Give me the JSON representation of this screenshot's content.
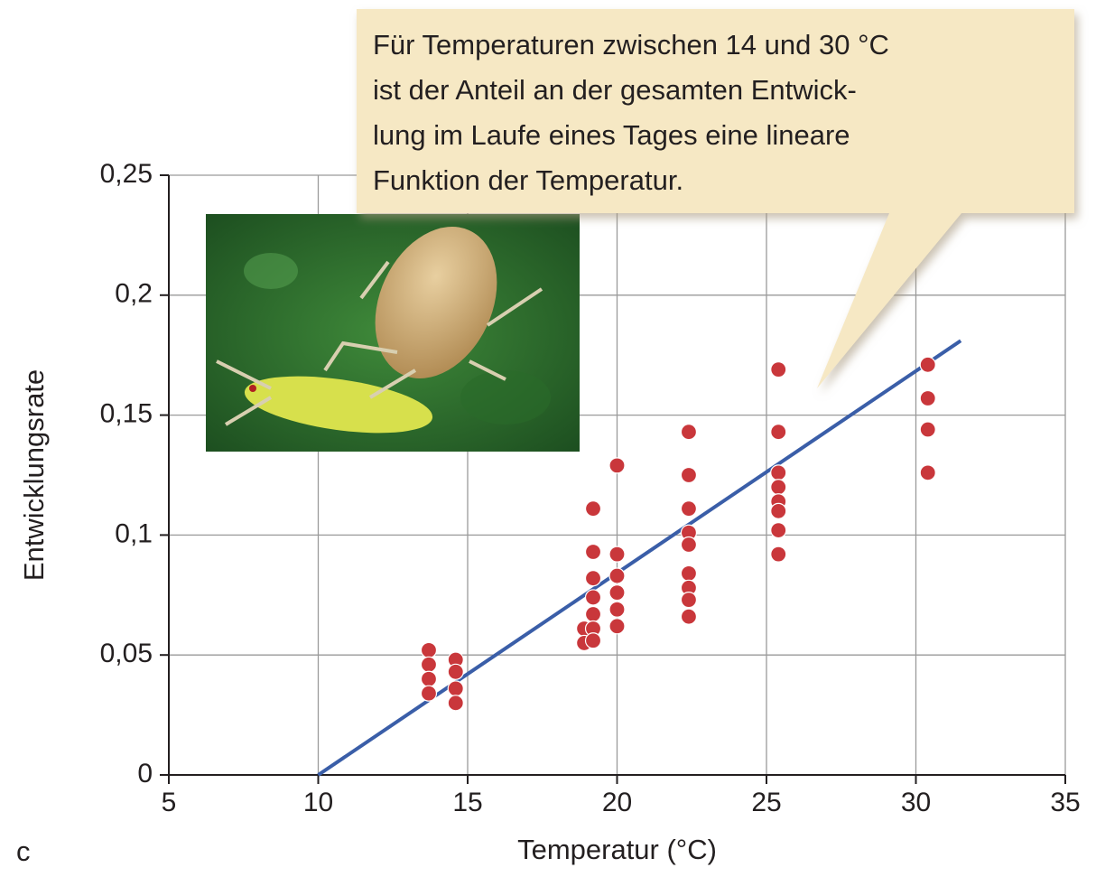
{
  "chart_data": {
    "type": "scatter",
    "panel_label": "c",
    "xlabel": "Temperatur (°C)",
    "ylabel": "Entwicklungsrate",
    "annotation": [
      "Für Temperaturen zwischen 14 und 30 °C",
      "ist der Anteil an der gesamten Entwick-",
      "lung im Laufe eines Tages eine lineare",
      "Funktion der Temperatur."
    ],
    "xlim": [
      5,
      35
    ],
    "xticks": [
      5,
      10,
      15,
      20,
      25,
      30,
      35
    ],
    "ylim": [
      0,
      0.25
    ],
    "yticks": [
      0,
      {
        "value": 0.05,
        "label": "0,05"
      },
      {
        "value": 0.1,
        "label": "0,1"
      },
      {
        "value": 0.15,
        "label": "0,15"
      },
      {
        "value": 0.2,
        "label": "0,2"
      },
      {
        "value": 0.25,
        "label": "0,25"
      }
    ],
    "grid": true,
    "series": [
      {
        "color": "#c9373b",
        "x": [
          13.7,
          13.7,
          13.7,
          13.7,
          14.6,
          14.6,
          14.6,
          14.6,
          18.9,
          18.9,
          19.2,
          19.2,
          19.2,
          19.2,
          19.2,
          19.2,
          19.2,
          20,
          20,
          20,
          20,
          20,
          20,
          22.4,
          22.4,
          22.4,
          22.4,
          22.4,
          22.4,
          22.4,
          22.4,
          22.4,
          25.4,
          25.4,
          25.4,
          25.4,
          25.4,
          25.4,
          25.4,
          25.4,
          30.4,
          30.4,
          30.4,
          30.4
        ],
        "values": [
          0.052,
          0.046,
          0.04,
          0.034,
          0.048,
          0.043,
          0.036,
          0.03,
          0.061,
          0.055,
          0.111,
          0.093,
          0.082,
          0.074,
          0.067,
          0.061,
          0.056,
          0.129,
          0.092,
          0.083,
          0.076,
          0.069,
          0.062,
          0.143,
          0.125,
          0.111,
          0.101,
          0.096,
          0.084,
          0.078,
          0.073,
          0.066,
          0.169,
          0.143,
          0.126,
          0.12,
          0.114,
          0.11,
          0.102,
          0.092,
          0.171,
          0.157,
          0.144,
          0.126
        ]
      }
    ],
    "fit_line": {
      "color": "#3a5ea8",
      "x": [
        10,
        31.5
      ],
      "values": [
        0,
        0.181
      ]
    }
  }
}
